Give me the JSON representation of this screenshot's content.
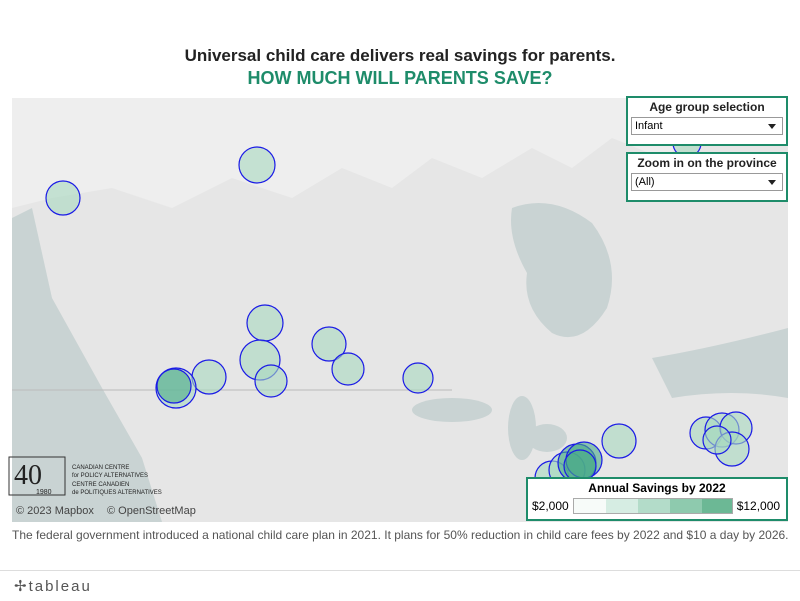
{
  "header": {
    "title": "Universal child care delivers real savings for parents.",
    "subtitle": "HOW MUCH WILL PARENTS SAVE?"
  },
  "filters": [
    {
      "label": "Age group selection",
      "value": "Infant"
    },
    {
      "label": "Zoom in on the province",
      "value": "(All)"
    }
  ],
  "legend": {
    "title": "Annual Savings by 2022",
    "min_label": "$2,000",
    "max_label": "$12,000"
  },
  "map": {
    "attribution": [
      "© 2023 Mapbox",
      "© OpenStreetMap"
    ]
  },
  "logo": {
    "number": "40",
    "year": "1980",
    "lines": [
      "CANADIAN CENTRE",
      "for POLICY ALTERNATIVES",
      "CENTRE CANADIEN",
      "de POLITIQUES ALTERNATIVES"
    ]
  },
  "footer": {
    "note": "The federal government introduced a national child care plan in 2021. It plans for 50% reduction in child care fees by 2022 and $10 a day by 2026."
  },
  "brand": "tableau"
}
